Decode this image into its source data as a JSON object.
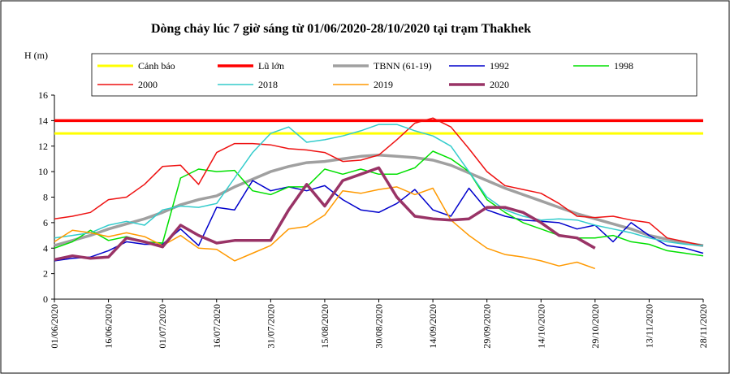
{
  "chart_data": {
    "type": "line",
    "title": "Dòng chảy lúc 7 giờ sáng từ 01/06/2020-28/10/2020 tại trạm Thakhek",
    "y_label": "H (m)",
    "x": [
      "01/06/2020",
      "06/06/2020",
      "11/06/2020",
      "16/06/2020",
      "21/06/2020",
      "26/06/2020",
      "01/07/2020",
      "06/07/2020",
      "11/07/2020",
      "16/07/2020",
      "21/07/2020",
      "26/07/2020",
      "31/07/2020",
      "05/08/2020",
      "10/08/2020",
      "15/08/2020",
      "20/08/2020",
      "25/08/2020",
      "30/08/2020",
      "04/09/2020",
      "09/09/2020",
      "14/09/2020",
      "19/09/2020",
      "24/09/2020",
      "29/09/2020",
      "04/10/2020",
      "09/10/2020",
      "14/10/2020",
      "19/10/2020",
      "24/10/2020",
      "29/10/2020",
      "03/11/2020",
      "08/11/2020",
      "13/11/2020",
      "18/11/2020",
      "23/11/2020",
      "28/11/2020"
    ],
    "xlim": [
      "01/06/2020",
      "28/11/2020"
    ],
    "xticks": [
      "01/06/2020",
      "16/06/2020",
      "01/07/2020",
      "16/07/2020",
      "31/07/2020",
      "15/08/2020",
      "30/08/2020",
      "14/09/2020",
      "29/09/2020",
      "14/10/2020",
      "29/10/2020",
      "13/11/2020",
      "28/11/2020"
    ],
    "ylim": [
      0,
      16
    ],
    "yticks": [
      0,
      2,
      4,
      6,
      8,
      10,
      12,
      14,
      16
    ],
    "series": [
      {
        "name": "Cảnh báo",
        "color": "#ffff00",
        "width": 3,
        "values": [
          13,
          13,
          13,
          13,
          13,
          13,
          13,
          13,
          13,
          13,
          13,
          13,
          13,
          13,
          13,
          13,
          13,
          13,
          13,
          13,
          13,
          13,
          13,
          13,
          13,
          13,
          13,
          13,
          13,
          13,
          13,
          13,
          13,
          13,
          13,
          13,
          13
        ]
      },
      {
        "name": "Lũ lớn",
        "color": "#ff0000",
        "width": 3.5,
        "values": [
          14,
          14,
          14,
          14,
          14,
          14,
          14,
          14,
          14,
          14,
          14,
          14,
          14,
          14,
          14,
          14,
          14,
          14,
          14,
          14,
          14,
          14,
          14,
          14,
          14,
          14,
          14,
          14,
          14,
          14,
          14,
          14,
          14,
          14,
          14,
          14,
          14
        ]
      },
      {
        "name": "TBNN (61-19)",
        "color": "#a0a0a0",
        "width": 3.5,
        "values": [
          4.2,
          4.6,
          5.0,
          5.5,
          5.9,
          6.3,
          6.8,
          7.4,
          7.8,
          8.1,
          8.8,
          9.4,
          10.0,
          10.4,
          10.7,
          10.8,
          11.0,
          11.2,
          11.3,
          11.2,
          11.1,
          10.9,
          10.5,
          9.9,
          9.3,
          8.7,
          8.2,
          7.7,
          7.2,
          6.7,
          6.3,
          5.9,
          5.5,
          5.0,
          4.7,
          4.4,
          4.2
        ]
      },
      {
        "name": "1992",
        "color": "#0000cc",
        "width": 1.5,
        "values": [
          3.0,
          3.2,
          3.3,
          3.8,
          4.5,
          4.3,
          4.3,
          5.5,
          4.2,
          7.2,
          7.0,
          9.3,
          8.5,
          8.8,
          8.5,
          8.9,
          7.8,
          7.0,
          6.8,
          7.5,
          8.6,
          7.0,
          6.5,
          8.7,
          7.0,
          6.5,
          6.2,
          6.1,
          6.0,
          5.5,
          5.8,
          4.5,
          6.0,
          5.0,
          4.2,
          4.0,
          3.6
        ]
      },
      {
        "name": "1998",
        "color": "#00e000",
        "width": 1.5,
        "values": [
          4.0,
          4.5,
          5.4,
          4.6,
          4.9,
          4.5,
          4.4,
          9.5,
          10.2,
          10.0,
          10.1,
          8.5,
          8.2,
          8.8,
          8.8,
          10.2,
          9.8,
          10.2,
          9.8,
          9.8,
          10.3,
          11.6,
          11.0,
          10.0,
          7.8,
          6.8,
          6.0,
          5.5,
          5.0,
          4.8,
          4.8,
          5.0,
          4.5,
          4.3,
          3.8,
          3.6,
          3.4
        ]
      },
      {
        "name": "2000",
        "color": "#ee1111",
        "width": 1.5,
        "values": [
          6.3,
          6.5,
          6.8,
          7.8,
          8.0,
          9.0,
          10.4,
          10.5,
          9.0,
          11.5,
          12.2,
          12.2,
          12.1,
          11.8,
          11.7,
          11.5,
          10.8,
          10.9,
          11.3,
          12.5,
          13.8,
          14.2,
          13.5,
          11.8,
          10.0,
          8.9,
          8.6,
          8.3,
          7.5,
          6.5,
          6.4,
          6.5,
          6.2,
          6.0,
          4.8,
          4.5,
          4.2
        ]
      },
      {
        "name": "2018",
        "color": "#33cccc",
        "width": 1.5,
        "values": [
          4.8,
          5.0,
          5.2,
          5.8,
          6.1,
          5.8,
          7.0,
          7.3,
          7.2,
          7.5,
          9.5,
          11.5,
          13.0,
          13.5,
          12.3,
          12.5,
          12.8,
          13.2,
          13.7,
          13.7,
          13.2,
          12.8,
          12.0,
          10.0,
          8.0,
          7.0,
          6.5,
          6.2,
          6.3,
          6.2,
          5.8,
          5.5,
          5.2,
          4.8,
          4.5,
          4.3,
          4.2
        ]
      },
      {
        "name": "2019",
        "color": "#ff9900",
        "width": 1.5,
        "values": [
          4.5,
          5.4,
          5.2,
          4.9,
          5.2,
          4.9,
          4.2,
          5.0,
          4.0,
          3.9,
          3.0,
          3.6,
          4.2,
          5.5,
          5.7,
          6.6,
          8.5,
          8.3,
          8.6,
          8.8,
          8.2,
          8.7,
          6.2,
          5.0,
          4.0,
          3.5,
          3.3,
          3.0,
          2.6,
          2.9,
          2.4,
          null,
          null,
          null,
          null,
          null,
          null
        ]
      },
      {
        "name": "2020",
        "color": "#993366",
        "width": 3.5,
        "values": [
          3.1,
          3.4,
          3.2,
          3.3,
          4.8,
          4.5,
          4.1,
          5.8,
          5.0,
          4.4,
          4.6,
          4.6,
          4.6,
          7.0,
          9.0,
          7.3,
          9.3,
          9.8,
          10.3,
          8.0,
          6.5,
          6.3,
          6.2,
          6.3,
          7.2,
          7.2,
          6.8,
          6.0,
          5.0,
          4.8,
          4.0,
          null,
          null,
          null,
          null,
          null,
          null
        ]
      }
    ]
  }
}
